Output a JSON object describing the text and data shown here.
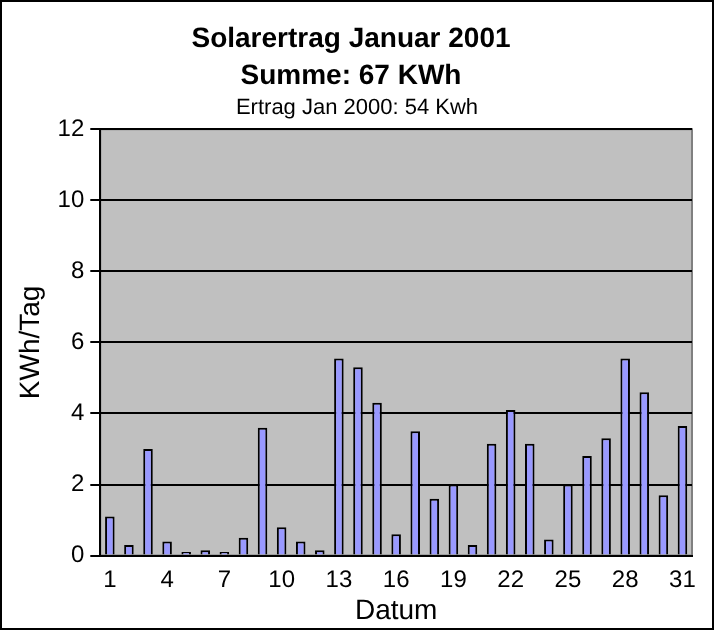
{
  "chart_data": {
    "type": "bar",
    "title": "Solarertrag Januar 2001",
    "subtitle": "Summe: 67 KWh",
    "annotations": [
      "Ertrag Jan 2000: 54 Kwh"
    ],
    "xlabel": "Datum",
    "ylabel": "KWh/Tag",
    "categories": [
      "1",
      null,
      null,
      "4",
      null,
      null,
      "7",
      null,
      null,
      "10",
      null,
      null,
      "13",
      null,
      null,
      "16",
      null,
      null,
      "19",
      null,
      null,
      "22",
      null,
      null,
      "25",
      null,
      null,
      "28",
      null,
      null,
      "31"
    ],
    "values": [
      1.1,
      0.3,
      3.0,
      0.4,
      0.1,
      0.15,
      0.1,
      0.5,
      3.6,
      0.8,
      0.4,
      0.15,
      5.55,
      5.3,
      4.3,
      0.6,
      3.5,
      1.6,
      2.0,
      0.3,
      3.15,
      4.1,
      3.15,
      0.45,
      2.0,
      2.8,
      3.3,
      5.55,
      4.6,
      1.7,
      3.65
    ],
    "color": "#9999ff",
    "ylim": [
      0,
      12
    ],
    "yticks": [
      0,
      2,
      4,
      6,
      8,
      10,
      12
    ],
    "grid": "y"
  }
}
